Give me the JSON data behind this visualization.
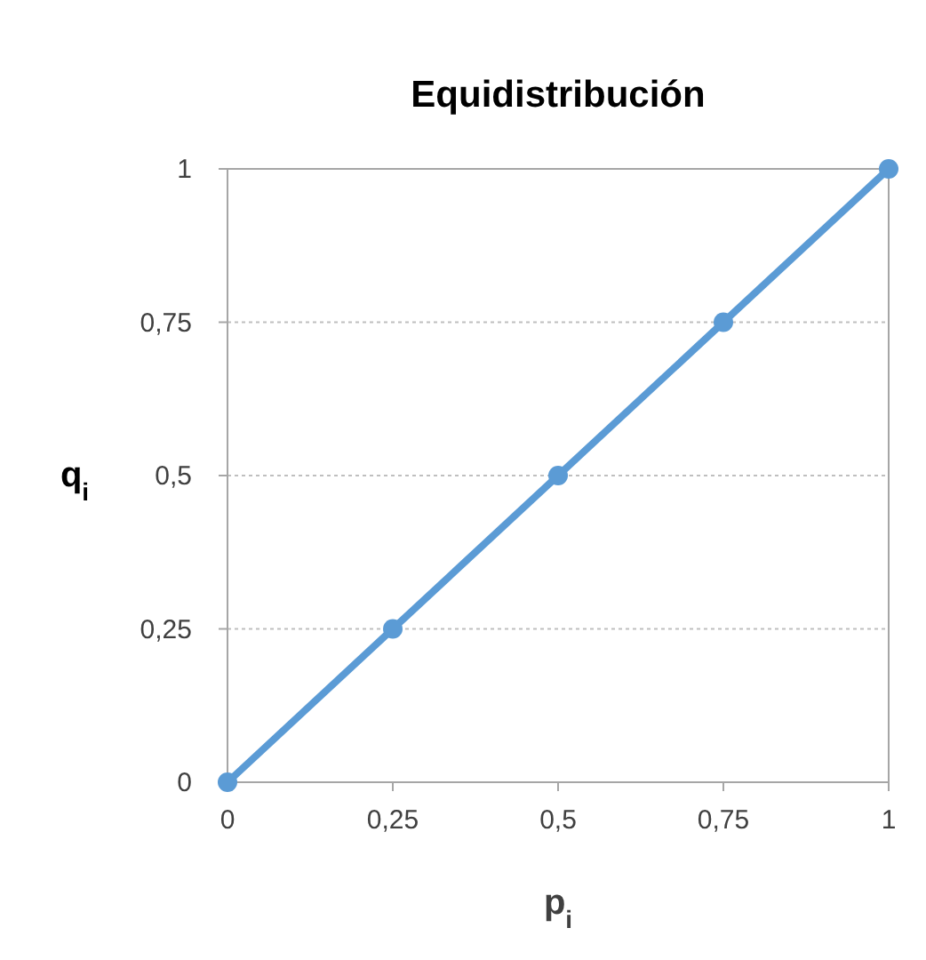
{
  "chart_data": {
    "type": "line",
    "title": "Equidistribución",
    "xlabel": "p$_{i}$",
    "ylabel": "q$_{i}$",
    "x": [
      0,
      0.25,
      0.5,
      0.75,
      1
    ],
    "series": [
      {
        "color": "#5b9bd5",
        "values": [
          0,
          0.25,
          0.5,
          0.75,
          1
        ]
      }
    ],
    "xlim": [
      0,
      1
    ],
    "ylim": [
      0,
      1
    ],
    "xticks": [
      0,
      {
        "value": 0.25,
        "label": "0,25"
      },
      {
        "value": 0.5,
        "label": "0,5"
      },
      {
        "value": 0.75,
        "label": "0,75"
      },
      1
    ],
    "yticks": [
      0,
      {
        "value": 0.25,
        "label": "0,25"
      },
      {
        "value": 0.5,
        "label": "0,5"
      },
      {
        "value": 0.75,
        "label": "0,75"
      },
      1
    ],
    "grid": "y",
    "marker": "circle",
    "line_style": "solid"
  }
}
